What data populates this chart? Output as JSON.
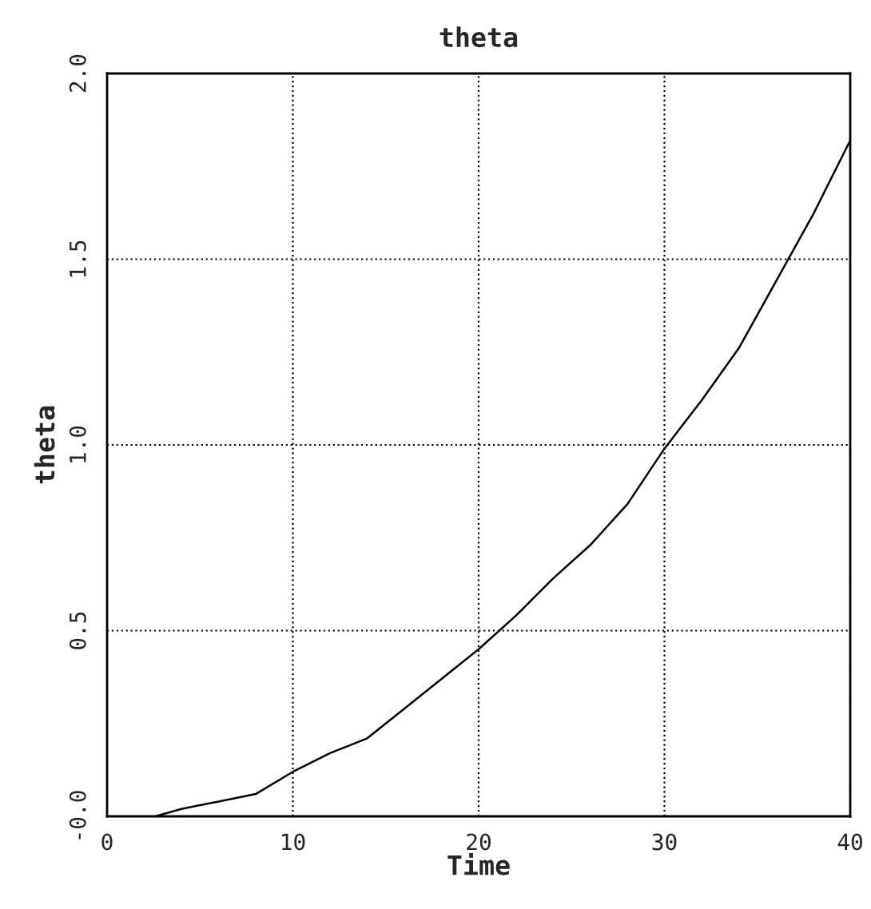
{
  "chart_data": {
    "type": "line",
    "title": "theta",
    "xlabel": "Time",
    "ylabel": "theta",
    "x": [
      2.6,
      4,
      5,
      6,
      8,
      10,
      12,
      14,
      16,
      18,
      20,
      22,
      24,
      26,
      28,
      30,
      32,
      34,
      36,
      38,
      40
    ],
    "series": [
      {
        "color": "#000000",
        "values": [
          0,
          0.02,
          0.03,
          0.04,
          0.06,
          0.12,
          0.17,
          0.21,
          0.29,
          0.37,
          0.45,
          0.54,
          0.64,
          0.73,
          0.84,
          0.99,
          1.12,
          1.26,
          1.44,
          1.62,
          1.82
        ]
      }
    ],
    "xlim": [
      0,
      40
    ],
    "ylim": [
      0,
      2.0
    ],
    "xticks": [
      0,
      10,
      20,
      30,
      40
    ],
    "yticks": [
      {
        "value": 0,
        "label": "-0.0"
      },
      {
        "value": 0.5,
        "label": "0.5"
      },
      {
        "value": 1.0,
        "label": "1.0"
      },
      {
        "value": 1.5,
        "label": "1.5"
      },
      {
        "value": 2.0,
        "label": "2.0"
      }
    ],
    "grid": true,
    "line_style": "solid"
  }
}
